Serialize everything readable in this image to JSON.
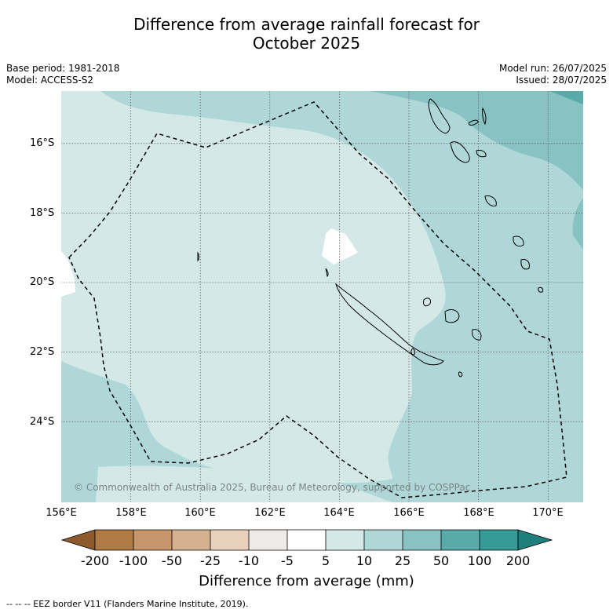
{
  "title_line1": "Difference from average rainfall forecast for",
  "title_line2": "October 2025",
  "meta": {
    "base_period": "Base period: 1981-2018",
    "model": "Model: ACCESS-S2",
    "model_run": "Model run: 26/07/2025",
    "issued": "Issued: 28/07/2025"
  },
  "lat_labels": [
    "16°S",
    "18°S",
    "20°S",
    "22°S",
    "24°S"
  ],
  "lon_labels": [
    "156°E",
    "158°E",
    "160°E",
    "162°E",
    "164°E",
    "166°E",
    "168°E",
    "170°E"
  ],
  "colorbar": {
    "ticks": [
      "-200",
      "-100",
      "-50",
      "-25",
      "-10",
      "-5",
      "5",
      "10",
      "25",
      "50",
      "100",
      "200"
    ],
    "label": "Difference from average (mm)",
    "colors": [
      "#8c5a2b",
      "#b07a45",
      "#c4966a",
      "#d5b192",
      "#e7d1bc",
      "#efebe8",
      "#ffffff",
      "#d5e8e8",
      "#b0d7d7",
      "#88c2c2",
      "#5aaaaa",
      "#369a96",
      "#1f7f7a"
    ]
  },
  "copyright": "© Commonwealth of Australia 2025, Bureau of Meteorology, supported by COSPPac",
  "footnote": "-- -- -- EEZ border V11 (Flanders Marine Institute, 2019)."
}
